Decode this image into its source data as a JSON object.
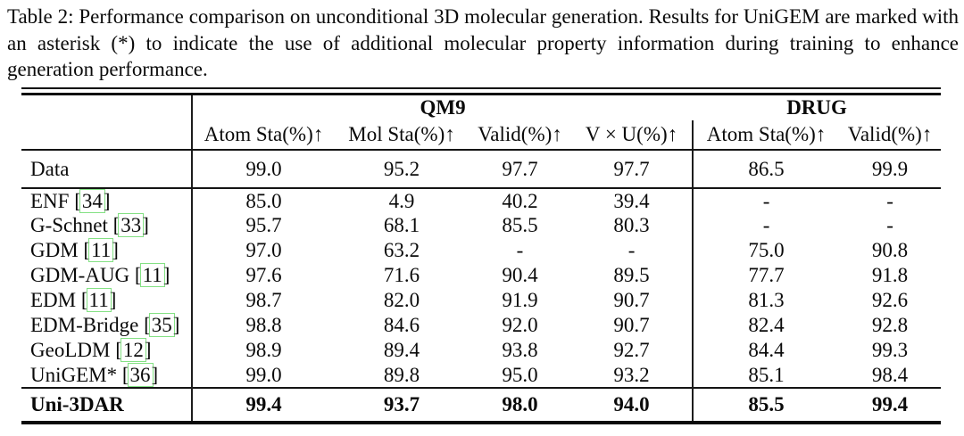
{
  "caption": "Table 2: Performance comparison on unconditional 3D molecular generation. Results for UniGEM are marked with an asterisk (*) to indicate the use of additional molecular property information during training to enhance generation performance.",
  "symbols": {
    "bracket_open": "[",
    "bracket_close": "]",
    "space": " "
  },
  "colors": {
    "citation_box": "#84e184",
    "text": "#0a0a0a",
    "background": "#ffffff",
    "rules": "#141414"
  },
  "table": {
    "group_headers": [
      {
        "label": "QM9",
        "colspan": 4
      },
      {
        "label": "DRUG",
        "colspan": 2
      }
    ],
    "sub_headers": [
      "Atom Sta(%)↑",
      "Mol Sta(%)↑",
      "Valid(%)↑",
      "V × U(%)↑",
      "Atom Sta(%)↑",
      "Valid(%)↑"
    ],
    "data_row": {
      "label": "Data",
      "cite": "",
      "values": [
        "99.0",
        "95.2",
        "97.7",
        "97.7",
        "86.5",
        "99.9"
      ]
    },
    "body_rows": [
      {
        "label": "ENF",
        "cite": "34",
        "values": [
          "85.0",
          "4.9",
          "40.2",
          "39.4",
          "-",
          "-"
        ]
      },
      {
        "label": "G-Schnet",
        "cite": "33",
        "values": [
          "95.7",
          "68.1",
          "85.5",
          "80.3",
          "-",
          "-"
        ]
      },
      {
        "label": "GDM",
        "cite": "11",
        "values": [
          "97.0",
          "63.2",
          "-",
          "-",
          "75.0",
          "90.8"
        ]
      },
      {
        "label": "GDM-AUG",
        "cite": "11",
        "values": [
          "97.6",
          "71.6",
          "90.4",
          "89.5",
          "77.7",
          "91.8"
        ]
      },
      {
        "label": "EDM",
        "cite": "11",
        "values": [
          "98.7",
          "82.0",
          "91.9",
          "90.7",
          "81.3",
          "92.6"
        ]
      },
      {
        "label": "EDM-Bridge",
        "cite": "35",
        "values": [
          "98.8",
          "84.6",
          "92.0",
          "90.7",
          "82.4",
          "92.8"
        ]
      },
      {
        "label": "GeoLDM",
        "cite": "12",
        "values": [
          "98.9",
          "89.4",
          "93.8",
          "92.7",
          "84.4",
          "99.3"
        ]
      },
      {
        "label": "UniGEM*",
        "cite": "36",
        "values": [
          "99.0",
          "89.8",
          "95.0",
          "93.2",
          "85.1",
          "98.4"
        ]
      }
    ],
    "footer_row": {
      "label": "Uni-3DAR",
      "cite": "",
      "values": [
        "99.4",
        "93.7",
        "98.0",
        "94.0",
        "85.5",
        "99.4"
      ]
    }
  }
}
